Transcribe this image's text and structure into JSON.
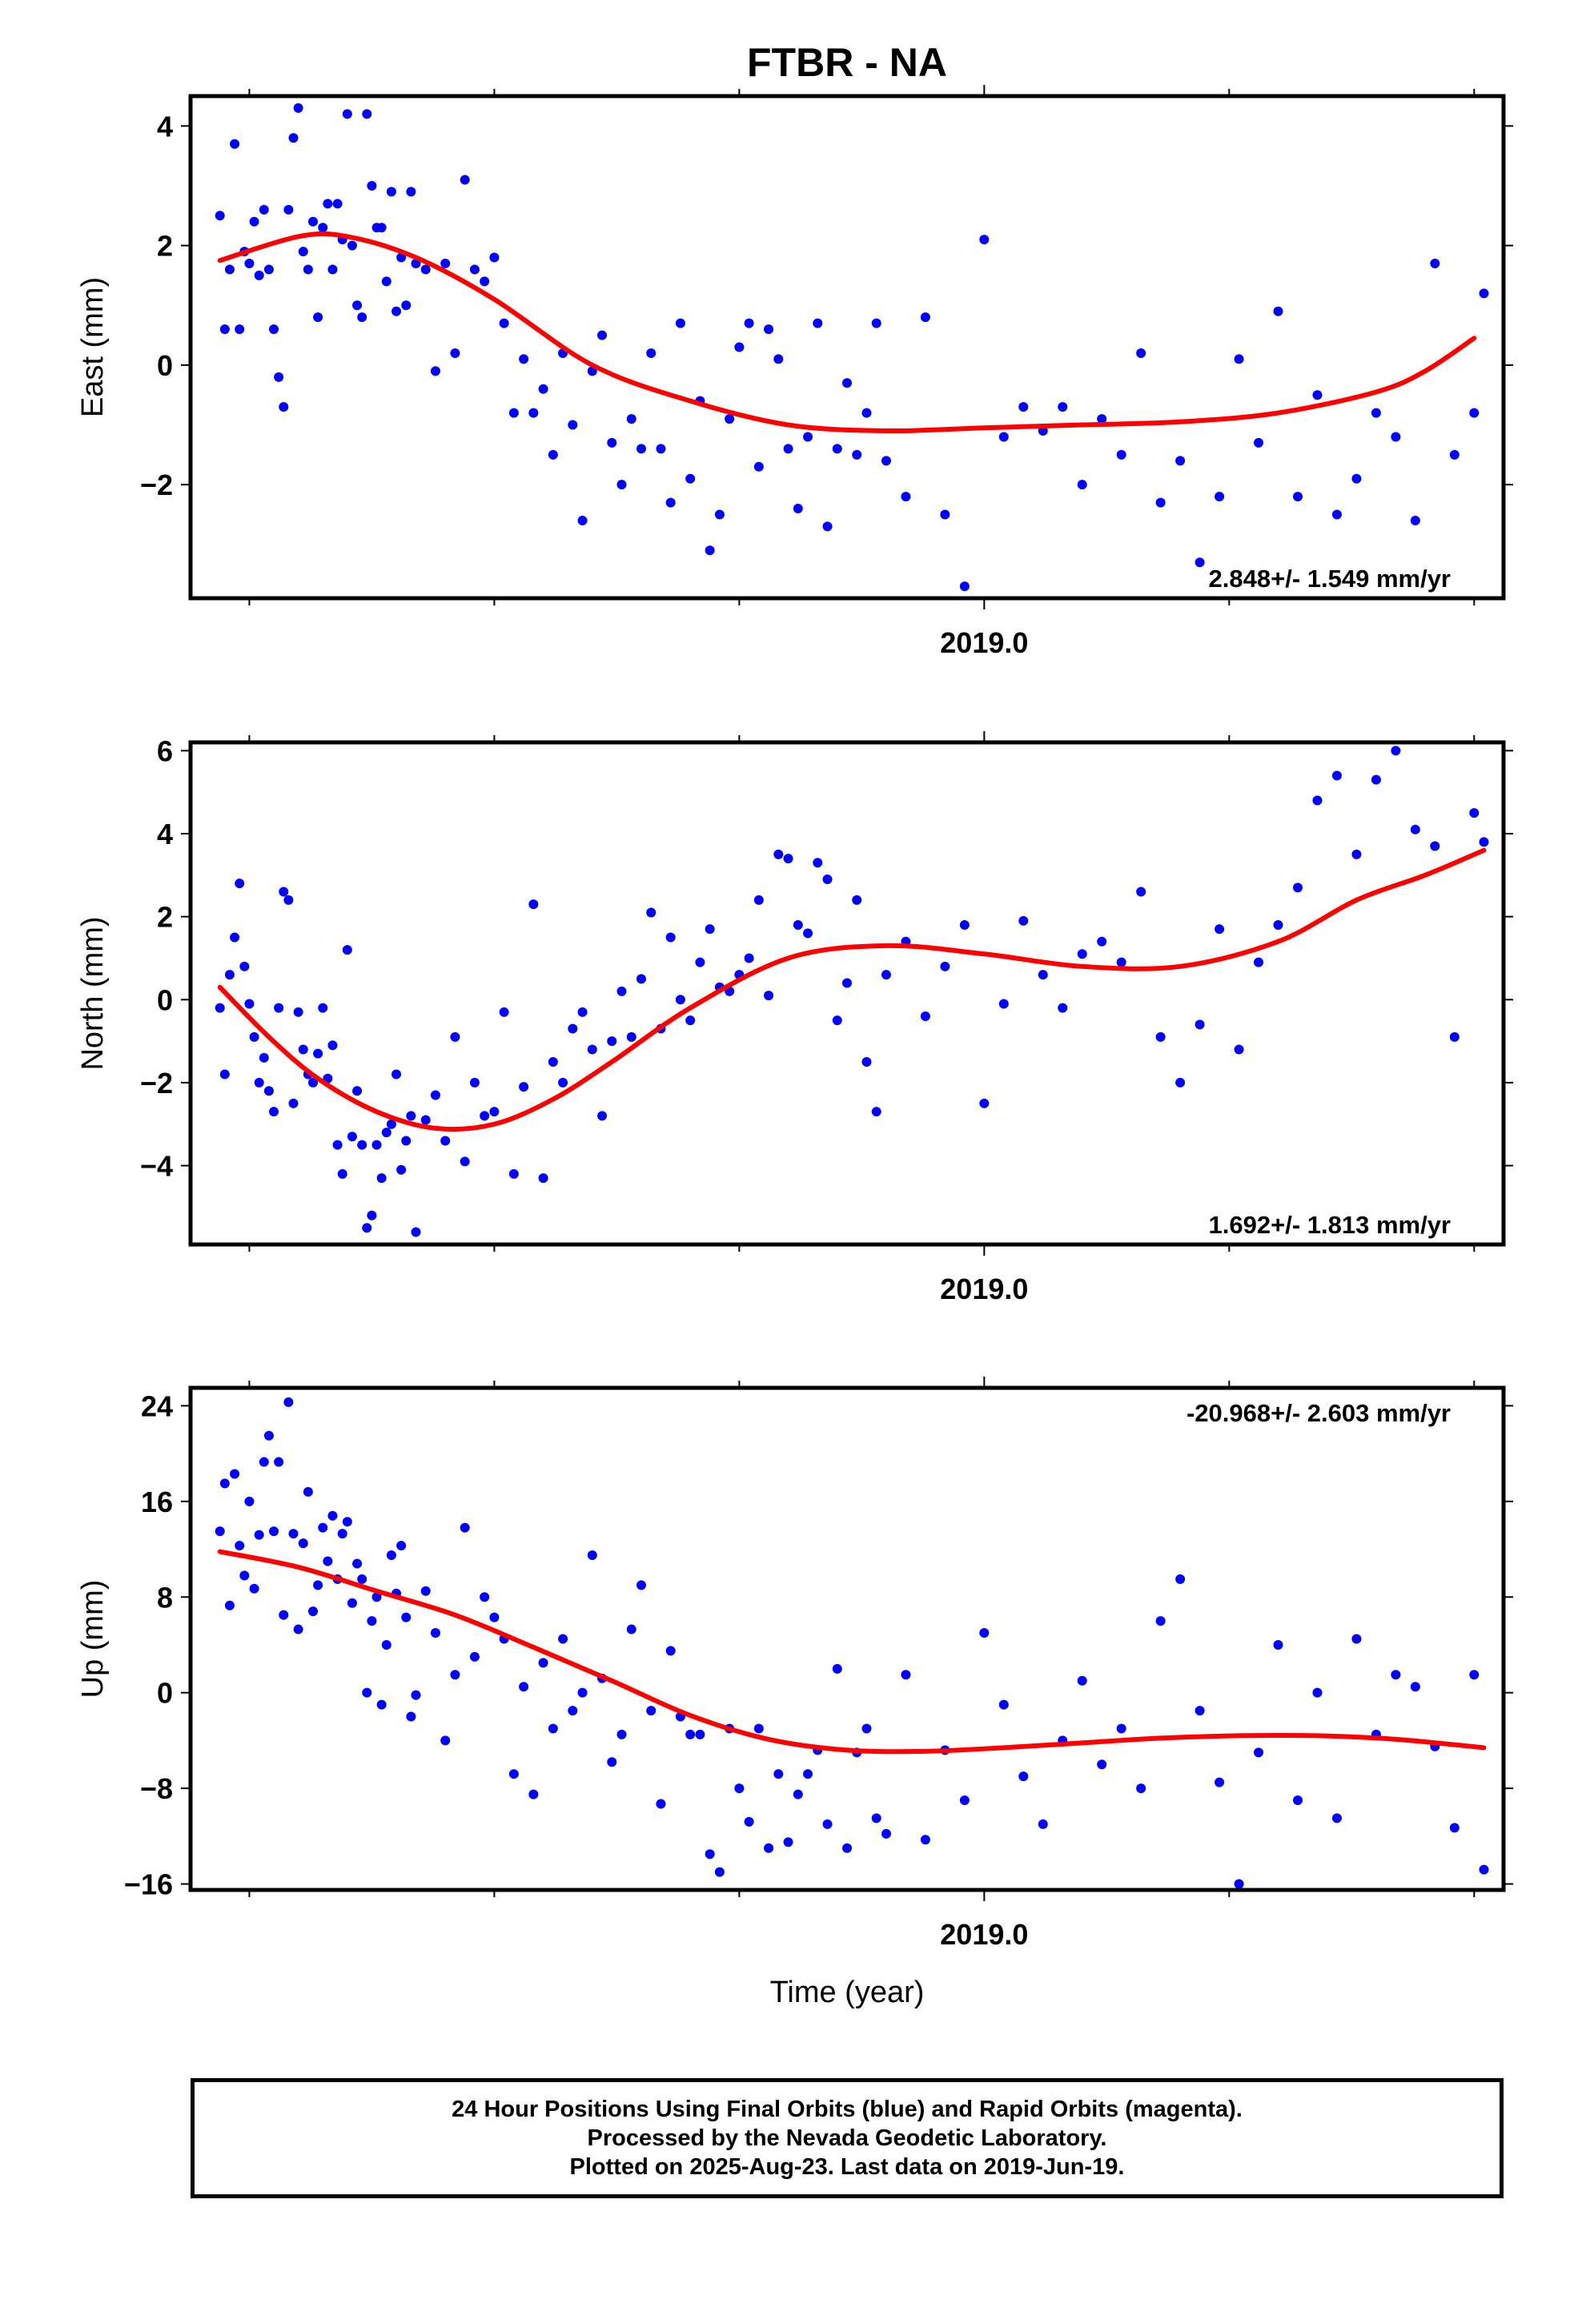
{
  "title": "FTBR - NA",
  "footer": {
    "line1": "24 Hour Positions Using Final Orbits (blue) and Rapid Orbits (magenta).",
    "line2": "Processed by the Nevada Geodetic Laboratory.",
    "line3": "Plotted on 2025-Aug-23. Last data on 2019-Jun-19."
  },
  "colors": {
    "points": "#0000ff",
    "fit": "#ff0000",
    "axes": "#000000"
  },
  "chart_data": [
    {
      "type": "scatter",
      "ylabel": "East (mm)",
      "xlabel": "",
      "x_tick_label": "2019.0",
      "xlim": [
        2018.19,
        2019.53
      ],
      "ylim": [
        -3.9,
        4.5
      ],
      "yticks": [
        -2,
        0,
        2,
        4
      ],
      "ytick_labels": [
        "−2",
        "0",
        "2",
        "4"
      ],
      "rate_label": "2.848+/- 1.549 mm/yr",
      "rate_position": "bottom-right",
      "fit": {
        "x": [
          2018.22,
          2018.3,
          2018.35,
          2018.42,
          2018.5,
          2018.6,
          2018.7,
          2018.8,
          2018.9,
          2019.0,
          2019.1,
          2019.2,
          2019.3,
          2019.4,
          2019.45,
          2019.5
        ],
        "y": [
          1.75,
          2.15,
          2.15,
          1.8,
          1.1,
          0.0,
          -0.6,
          -1.0,
          -1.1,
          -1.05,
          -1.0,
          -0.95,
          -0.8,
          -0.45,
          -0.1,
          0.45
        ]
      },
      "points": {
        "x": [
          2018.22,
          2018.225,
          2018.23,
          2018.235,
          2018.24,
          2018.245,
          2018.25,
          2018.255,
          2018.26,
          2018.265,
          2018.27,
          2018.275,
          2018.28,
          2018.285,
          2018.29,
          2018.295,
          2018.3,
          2018.305,
          2018.31,
          2018.315,
          2018.32,
          2018.325,
          2018.33,
          2018.335,
          2018.34,
          2018.345,
          2018.35,
          2018.355,
          2018.36,
          2018.365,
          2018.37,
          2018.375,
          2018.38,
          2018.385,
          2018.39,
          2018.395,
          2018.4,
          2018.405,
          2018.41,
          2018.415,
          2018.42,
          2018.43,
          2018.44,
          2018.45,
          2018.46,
          2018.47,
          2018.48,
          2018.49,
          2018.5,
          2018.51,
          2018.52,
          2018.53,
          2018.54,
          2018.55,
          2018.56,
          2018.57,
          2018.58,
          2018.59,
          2018.6,
          2018.61,
          2018.62,
          2018.63,
          2018.64,
          2018.65,
          2018.66,
          2018.67,
          2018.68,
          2018.69,
          2018.7,
          2018.71,
          2018.72,
          2018.73,
          2018.74,
          2018.75,
          2018.76,
          2018.77,
          2018.78,
          2018.79,
          2018.8,
          2018.81,
          2018.82,
          2018.83,
          2018.84,
          2018.85,
          2018.86,
          2018.87,
          2018.88,
          2018.89,
          2018.9,
          2018.92,
          2018.94,
          2018.96,
          2018.98,
          2019.0,
          2019.02,
          2019.04,
          2019.06,
          2019.08,
          2019.1,
          2019.12,
          2019.14,
          2019.16,
          2019.18,
          2019.2,
          2019.22,
          2019.24,
          2019.26,
          2019.28,
          2019.3,
          2019.32,
          2019.34,
          2019.36,
          2019.38,
          2019.4,
          2019.42,
          2019.44,
          2019.46,
          2019.48,
          2019.5,
          2019.51
        ],
        "y": [
          2.5,
          0.6,
          1.6,
          3.7,
          0.6,
          1.9,
          1.7,
          2.4,
          1.5,
          2.6,
          1.6,
          0.6,
          -0.2,
          -0.7,
          2.6,
          3.8,
          4.3,
          1.9,
          1.6,
          2.4,
          0.8,
          2.3,
          2.7,
          1.6,
          2.7,
          2.1,
          4.2,
          2.0,
          1.0,
          0.8,
          4.2,
          3.0,
          2.3,
          2.3,
          1.4,
          2.9,
          0.9,
          1.8,
          1.0,
          2.9,
          1.7,
          1.6,
          -0.1,
          1.7,
          0.2,
          3.1,
          1.6,
          1.4,
          1.8,
          0.7,
          -0.8,
          0.1,
          -0.8,
          -0.4,
          -1.5,
          0.2,
          -1.0,
          -2.6,
          -0.1,
          0.5,
          -1.3,
          -2.0,
          -0.9,
          -1.4,
          0.2,
          -1.4,
          -2.3,
          0.7,
          -1.9,
          -0.6,
          -3.1,
          -2.5,
          -0.9,
          0.3,
          0.7,
          -1.7,
          0.6,
          0.1,
          -1.4,
          -2.4,
          -1.2,
          0.7,
          -2.7,
          -1.4,
          -0.3,
          -1.5,
          -0.8,
          0.7,
          -1.6,
          -2.2,
          0.8,
          -2.5,
          -3.7,
          2.1,
          -1.2,
          -0.7,
          -1.1,
          -0.7,
          -2.0,
          -0.9,
          -1.5,
          0.2,
          -2.3,
          -1.6,
          -3.3,
          -2.2,
          0.1,
          -1.3,
          0.9,
          -2.2,
          -0.5,
          -2.5,
          -1.9,
          -0.8,
          -1.2,
          -2.6,
          1.7,
          -1.5,
          -0.8,
          1.2
        ]
      }
    },
    {
      "type": "scatter",
      "ylabel": "North (mm)",
      "xlabel": "",
      "x_tick_label": "2019.0",
      "xlim": [
        2018.19,
        2019.53
      ],
      "ylim": [
        -5.9,
        6.2
      ],
      "yticks": [
        -4,
        -2,
        0,
        2,
        4,
        6
      ],
      "ytick_labels": [
        "−4",
        "−2",
        "0",
        "2",
        "4",
        "6"
      ],
      "rate_label": "1.692+/- 1.813 mm/yr",
      "rate_position": "bottom-right",
      "fit": {
        "x": [
          2018.22,
          2018.27,
          2018.32,
          2018.38,
          2018.44,
          2018.5,
          2018.56,
          2018.62,
          2018.7,
          2018.8,
          2018.9,
          2019.0,
          2019.1,
          2019.2,
          2019.3,
          2019.38,
          2019.45,
          2019.51
        ],
        "y": [
          0.3,
          -0.9,
          -1.9,
          -2.7,
          -3.1,
          -3.0,
          -2.4,
          -1.5,
          -0.2,
          1.0,
          1.3,
          1.1,
          0.8,
          0.8,
          1.4,
          2.4,
          3.0,
          3.6
        ]
      },
      "points": {
        "x": [
          2018.22,
          2018.225,
          2018.23,
          2018.235,
          2018.24,
          2018.245,
          2018.25,
          2018.255,
          2018.26,
          2018.265,
          2018.27,
          2018.275,
          2018.28,
          2018.285,
          2018.29,
          2018.295,
          2018.3,
          2018.305,
          2018.31,
          2018.315,
          2018.32,
          2018.325,
          2018.33,
          2018.335,
          2018.34,
          2018.345,
          2018.35,
          2018.355,
          2018.36,
          2018.365,
          2018.37,
          2018.375,
          2018.38,
          2018.385,
          2018.39,
          2018.395,
          2018.4,
          2018.405,
          2018.41,
          2018.415,
          2018.42,
          2018.43,
          2018.44,
          2018.45,
          2018.46,
          2018.47,
          2018.48,
          2018.49,
          2018.5,
          2018.51,
          2018.52,
          2018.53,
          2018.54,
          2018.55,
          2018.56,
          2018.57,
          2018.58,
          2018.59,
          2018.6,
          2018.61,
          2018.62,
          2018.63,
          2018.64,
          2018.65,
          2018.66,
          2018.67,
          2018.68,
          2018.69,
          2018.7,
          2018.71,
          2018.72,
          2018.73,
          2018.74,
          2018.75,
          2018.76,
          2018.77,
          2018.78,
          2018.79,
          2018.8,
          2018.81,
          2018.82,
          2018.83,
          2018.84,
          2018.85,
          2018.86,
          2018.87,
          2018.88,
          2018.89,
          2018.9,
          2018.92,
          2018.94,
          2018.96,
          2018.98,
          2019.0,
          2019.02,
          2019.04,
          2019.06,
          2019.08,
          2019.1,
          2019.12,
          2019.14,
          2019.16,
          2019.18,
          2019.2,
          2019.22,
          2019.24,
          2019.26,
          2019.28,
          2019.3,
          2019.32,
          2019.34,
          2019.36,
          2019.38,
          2019.4,
          2019.42,
          2019.44,
          2019.46,
          2019.48,
          2019.5,
          2019.51
        ],
        "y": [
          -0.2,
          -1.8,
          0.6,
          1.5,
          2.8,
          0.8,
          -0.1,
          -0.9,
          -2.0,
          -1.4,
          -2.2,
          -2.7,
          -0.2,
          2.6,
          2.4,
          -2.5,
          -0.3,
          -1.2,
          -1.8,
          -2.0,
          -1.3,
          -0.2,
          -1.9,
          -1.1,
          -3.5,
          -4.2,
          1.2,
          -3.3,
          -2.2,
          -3.5,
          -5.5,
          -5.2,
          -3.5,
          -4.3,
          -3.2,
          -3.0,
          -1.8,
          -4.1,
          -3.4,
          -2.8,
          -5.6,
          -2.9,
          -2.3,
          -3.4,
          -0.9,
          -3.9,
          -2.0,
          -2.8,
          -2.7,
          -0.3,
          -4.2,
          -2.1,
          2.3,
          -4.3,
          -1.5,
          -2.0,
          -0.7,
          -0.3,
          -1.2,
          -2.8,
          -1.0,
          0.2,
          -0.9,
          0.5,
          2.1,
          -0.7,
          1.5,
          0.0,
          -0.5,
          0.9,
          1.7,
          0.3,
          0.2,
          0.6,
          1.0,
          2.4,
          0.1,
          3.5,
          3.4,
          1.8,
          1.6,
          3.3,
          2.9,
          -0.5,
          0.4,
          2.4,
          -1.5,
          -2.7,
          0.6,
          1.4,
          -0.4,
          0.8,
          1.8,
          -2.5,
          -0.1,
          1.9,
          0.6,
          -0.2,
          1.1,
          1.4,
          0.9,
          2.6,
          -0.9,
          -2.0,
          -0.6,
          1.7,
          -1.2,
          0.9,
          1.8,
          2.7,
          4.8,
          5.4,
          3.5,
          5.3,
          6.0,
          4.1,
          3.7,
          -0.9,
          4.5,
          3.8
        ]
      }
    },
    {
      "type": "scatter",
      "ylabel": "Up (mm)",
      "xlabel": "Time (year)",
      "x_tick_label": "2019.0",
      "xlim": [
        2018.19,
        2019.53
      ],
      "ylim": [
        -16.5,
        25.5
      ],
      "yticks": [
        -16,
        -8,
        0,
        8,
        16,
        24
      ],
      "ytick_labels": [
        "−16",
        "−8",
        "0",
        "8",
        "16",
        "24"
      ],
      "rate_label": "-20.968+/- 2.603 mm/yr",
      "rate_position": "top-right",
      "fit": {
        "x": [
          2018.22,
          2018.3,
          2018.38,
          2018.46,
          2018.54,
          2018.62,
          2018.7,
          2018.78,
          2018.86,
          2018.94,
          2019.02,
          2019.1,
          2019.18,
          2019.26,
          2019.34,
          2019.42,
          2019.51
        ],
        "y": [
          11.8,
          10.5,
          8.5,
          6.5,
          3.8,
          1.0,
          -1.9,
          -3.9,
          -4.8,
          -4.9,
          -4.6,
          -4.2,
          -3.8,
          -3.6,
          -3.6,
          -3.9,
          -4.6
        ]
      },
      "points": {
        "x": [
          2018.22,
          2018.225,
          2018.23,
          2018.235,
          2018.24,
          2018.245,
          2018.25,
          2018.255,
          2018.26,
          2018.265,
          2018.27,
          2018.275,
          2018.28,
          2018.285,
          2018.29,
          2018.295,
          2018.3,
          2018.305,
          2018.31,
          2018.315,
          2018.32,
          2018.325,
          2018.33,
          2018.335,
          2018.34,
          2018.345,
          2018.35,
          2018.355,
          2018.36,
          2018.365,
          2018.37,
          2018.375,
          2018.38,
          2018.385,
          2018.39,
          2018.395,
          2018.4,
          2018.405,
          2018.41,
          2018.415,
          2018.42,
          2018.43,
          2018.44,
          2018.45,
          2018.46,
          2018.47,
          2018.48,
          2018.49,
          2018.5,
          2018.51,
          2018.52,
          2018.53,
          2018.54,
          2018.55,
          2018.56,
          2018.57,
          2018.58,
          2018.59,
          2018.6,
          2018.61,
          2018.62,
          2018.63,
          2018.64,
          2018.65,
          2018.66,
          2018.67,
          2018.68,
          2018.69,
          2018.7,
          2018.71,
          2018.72,
          2018.73,
          2018.74,
          2018.75,
          2018.76,
          2018.77,
          2018.78,
          2018.79,
          2018.8,
          2018.81,
          2018.82,
          2018.83,
          2018.84,
          2018.85,
          2018.86,
          2018.87,
          2018.88,
          2018.89,
          2018.9,
          2018.92,
          2018.94,
          2018.96,
          2018.98,
          2019.0,
          2019.02,
          2019.04,
          2019.06,
          2019.08,
          2019.1,
          2019.12,
          2019.14,
          2019.16,
          2019.18,
          2019.2,
          2019.22,
          2019.24,
          2019.26,
          2019.28,
          2019.3,
          2019.32,
          2019.34,
          2019.36,
          2019.38,
          2019.4,
          2019.42,
          2019.44,
          2019.46,
          2019.48,
          2019.5,
          2019.51
        ],
        "y": [
          13.5,
          17.5,
          7.3,
          18.3,
          12.3,
          9.8,
          16.0,
          8.7,
          13.2,
          19.3,
          21.5,
          13.5,
          19.3,
          6.5,
          24.3,
          13.3,
          5.3,
          12.5,
          16.8,
          6.8,
          9.0,
          13.8,
          11.0,
          14.8,
          9.5,
          13.3,
          14.3,
          7.5,
          10.8,
          9.5,
          0.0,
          6.0,
          8.0,
          -1.0,
          4.0,
          11.5,
          8.3,
          12.3,
          6.3,
          -2.0,
          -0.2,
          8.5,
          5.0,
          -4.0,
          1.5,
          13.8,
          3.0,
          8.0,
          6.3,
          4.5,
          -6.8,
          0.5,
          -8.5,
          2.5,
          -3.0,
          4.5,
          -1.5,
          0.0,
          11.5,
          1.2,
          -5.8,
          -3.5,
          5.3,
          9.0,
          -1.5,
          -9.3,
          3.5,
          -2.0,
          -3.5,
          -3.5,
          -13.5,
          -15.0,
          -3.0,
          -8.0,
          -10.8,
          -3.0,
          -13.0,
          -6.8,
          -12.5,
          -8.5,
          -6.8,
          -4.8,
          -11.0,
          2.0,
          -13.0,
          -5.0,
          -3.0,
          -10.5,
          -11.8,
          1.5,
          -12.3,
          -4.8,
          -9.0,
          5.0,
          -1.0,
          -7.0,
          -11.0,
          -4.0,
          1.0,
          -6.0,
          -3.0,
          -8.0,
          6.0,
          9.5,
          -1.5,
          -7.5,
          -16.0,
          -5.0,
          4.0,
          -9.0,
          0.0,
          -10.5,
          4.5,
          -3.5,
          1.5,
          0.5,
          -4.5,
          -11.3,
          1.5,
          -14.8
        ]
      }
    }
  ]
}
